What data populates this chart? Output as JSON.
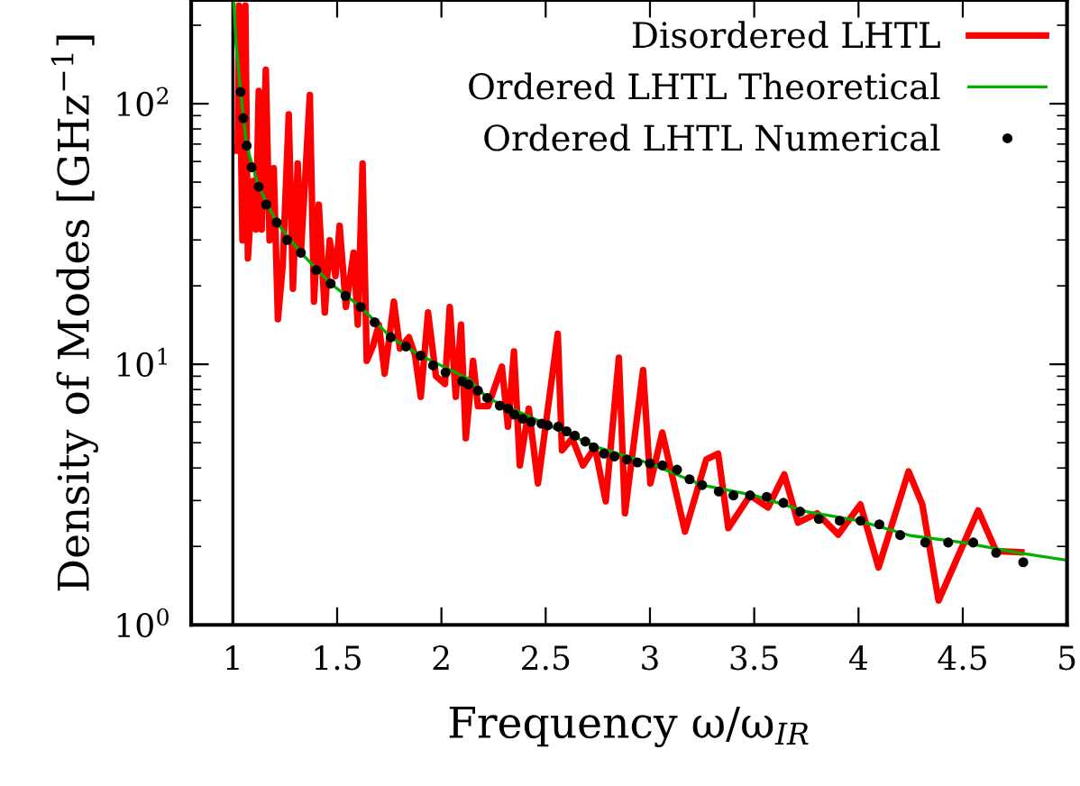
{
  "chart_data": {
    "type": "line",
    "xlabel": "Frequency ω/ω$_{IR}$",
    "ylabel": "Density of Modes [GHz$^{−1}$]",
    "xlim": [
      0.8,
      5
    ],
    "xticks": [
      1,
      1.5,
      2,
      2.5,
      3,
      3.5,
      4,
      4.5,
      5
    ],
    "ylim": [
      1,
      250
    ],
    "log": "y",
    "yticks": [
      {
        "value": 1,
        "label": "10$^{0}$"
      },
      {
        "value": 10,
        "label": "10$^{1}$"
      },
      {
        "value": 100,
        "label": "10$^{2}$"
      }
    ],
    "grid": false,
    "legend": "top right",
    "ref_lines": [
      {
        "axis": "x",
        "value": 1,
        "color": "#000000"
      }
    ],
    "series": [
      {
        "name": "Disordered LHTL",
        "color": "#ff0000",
        "marker": "none",
        "x": [
          1.023,
          1.029,
          1.046,
          1.052,
          1.06,
          1.072,
          1.095,
          1.11,
          1.124,
          1.138,
          1.158,
          1.176,
          1.196,
          1.216,
          1.239,
          1.268,
          1.288,
          1.311,
          1.326,
          1.346,
          1.369,
          1.389,
          1.412,
          1.441,
          1.464,
          1.492,
          1.512,
          1.542,
          1.579,
          1.599,
          1.622,
          1.642,
          1.671,
          1.7,
          1.728,
          1.772,
          1.801,
          1.844,
          1.873,
          1.901,
          1.936,
          1.974,
          2.017,
          2.04,
          2.069,
          2.094,
          2.117,
          2.152,
          2.175,
          2.224,
          2.29,
          2.319,
          2.348,
          2.376,
          2.419,
          2.463,
          2.558,
          2.578,
          2.627,
          2.679,
          2.736,
          2.788,
          2.851,
          2.88,
          2.967,
          3.002,
          3.059,
          3.168,
          3.27,
          3.327,
          3.376,
          3.48,
          3.566,
          3.644,
          3.71,
          3.802,
          3.903,
          4.009,
          4.096,
          4.24,
          4.306,
          4.384,
          4.574,
          4.66,
          4.781
        ],
        "values": [
          66,
          238,
          29.9,
          112,
          238,
          25.5,
          50.5,
          32.9,
          112,
          32.9,
          135,
          29.9,
          56.5,
          14.9,
          23.9,
          91,
          19.5,
          59,
          26.8,
          50.5,
          108,
          17.4,
          41,
          15.8,
          29.9,
          21.8,
          34,
          16.6,
          26.8,
          14.2,
          59,
          10.3,
          11.7,
          14.2,
          9.2,
          17.4,
          11.5,
          12.7,
          10.9,
          7.5,
          15.8,
          9.0,
          8.4,
          16.6,
          7.5,
          14.2,
          5.2,
          10.3,
          6.9,
          6.9,
          9.8,
          5.76,
          11.2,
          4.09,
          6.76,
          3.49,
          13.1,
          4.67,
          5.2,
          4.09,
          4.8,
          2.98,
          10.6,
          2.68,
          9.5,
          3.49,
          5.47,
          2.28,
          4.31,
          4.54,
          2.35,
          3.14,
          2.82,
          3.78,
          2.47,
          2.68,
          2.22,
          2.9,
          1.66,
          3.88,
          2.9,
          1.24,
          2.75,
          1.92,
          1.9
        ]
      },
      {
        "name": "Ordered LHTL Theoretical",
        "color": "#00b000",
        "marker": "none",
        "x": [
          1.005,
          1.015,
          1.037,
          1.066,
          1.124,
          1.21,
          1.326,
          1.469,
          1.613,
          1.757,
          1.9,
          2.13,
          2.22,
          2.5,
          2.75,
          3.0,
          3.25,
          3.5,
          3.75,
          4.0,
          4.25,
          4.5,
          4.75,
          5.0
        ],
        "values": [
          245,
          170,
          111,
          69,
          48,
          35,
          26.8,
          20.4,
          16.6,
          12.7,
          10.8,
          8.8,
          7.43,
          5.9,
          4.8,
          4.16,
          3.44,
          3.14,
          2.72,
          2.51,
          2.2,
          2.07,
          1.9,
          1.77
        ]
      },
      {
        "name": "Ordered LHTL Numerical",
        "type": "scatter",
        "color": "#000000",
        "marker": "circle",
        "x": [
          1.037,
          1.05,
          1.066,
          1.09,
          1.124,
          1.16,
          1.21,
          1.26,
          1.326,
          1.4,
          1.469,
          1.54,
          1.613,
          1.68,
          1.757,
          1.83,
          1.9,
          1.96,
          2.02,
          2.1,
          2.13,
          2.175,
          2.22,
          2.28,
          2.32,
          2.35,
          2.39,
          2.43,
          2.48,
          2.51,
          2.56,
          2.6,
          2.64,
          2.69,
          2.73,
          2.78,
          2.83,
          2.89,
          2.94,
          3.0,
          3.06,
          3.13,
          3.19,
          3.25,
          3.33,
          3.4,
          3.48,
          3.56,
          3.64,
          3.72,
          3.81,
          3.91,
          4.01,
          4.1,
          4.2,
          4.32,
          4.43,
          4.55,
          4.66,
          4.79
        ],
        "values": [
          111,
          88,
          69,
          57,
          48,
          41,
          35,
          30,
          26.8,
          23,
          20.4,
          18.3,
          16.6,
          14.5,
          12.7,
          11.7,
          10.8,
          9.9,
          9.3,
          8.6,
          8.36,
          7.92,
          7.43,
          6.94,
          6.76,
          6.41,
          6.18,
          6.01,
          5.92,
          5.83,
          5.76,
          5.53,
          5.32,
          5.05,
          4.8,
          4.54,
          4.43,
          4.31,
          4.2,
          4.16,
          4.09,
          3.94,
          3.62,
          3.44,
          3.25,
          3.14,
          3.14,
          3.1,
          2.94,
          2.72,
          2.55,
          2.51,
          2.51,
          2.43,
          2.21,
          2.07,
          2.07,
          2.07,
          1.89,
          1.74
        ]
      }
    ]
  }
}
